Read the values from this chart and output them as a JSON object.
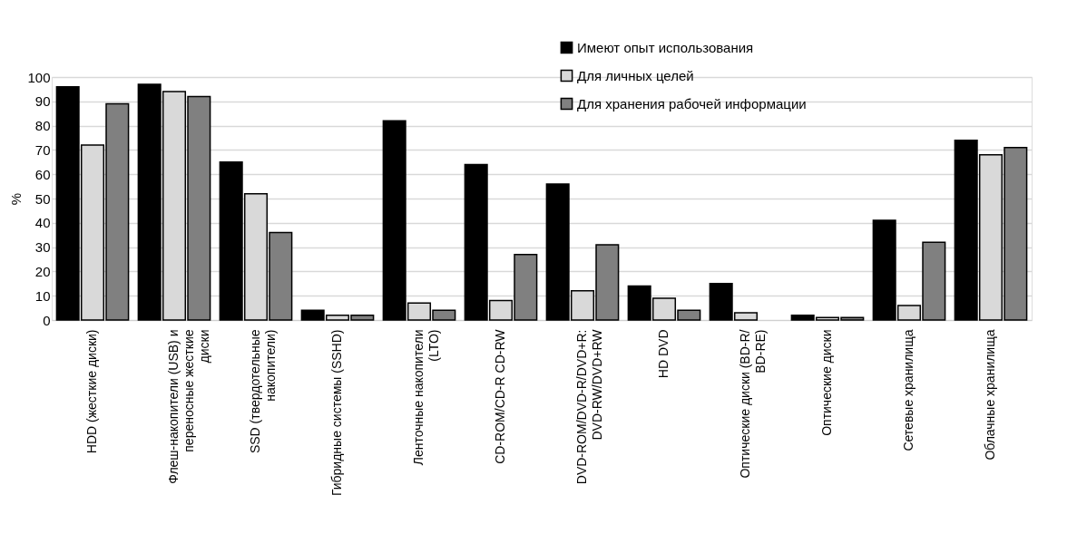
{
  "chart_data": {
    "type": "bar",
    "ylabel": "%",
    "categories": [
      "HDD (жесткие диски)",
      "Флеш-накопители (USB) и\nпереносные жесткие\nдиски",
      "SSD (твердотельные\nнакопители)",
      "Гибридные системы (SSHD)",
      "Ленточные накопители\n(LTO)",
      "CD-ROM/CD-R CD-RW",
      "DVD-ROM/DVD-R/DVD+R:\nDVD-RW/DVD+RW",
      "HD DVD",
      "Оптические диски (BD-R/\nBD-RE)",
      "Оптические диски",
      "Сетевые хранилища",
      "Облачные хранилища"
    ],
    "series": [
      {
        "name": "Имеют опыт использования",
        "color": "#000000",
        "values": [
          96,
          97,
          65,
          4,
          82,
          64,
          56,
          14,
          15,
          2,
          41,
          74
        ]
      },
      {
        "name": "Для личных целей",
        "color": "#d9d9d9",
        "values": [
          72,
          94,
          52,
          2,
          7,
          8,
          12,
          9,
          3,
          1,
          6,
          68
        ]
      },
      {
        "name": "Для хранения рабочей информации",
        "color": "#808080",
        "values": [
          89,
          92,
          36,
          2,
          4,
          27,
          31,
          4,
          null,
          1,
          32,
          71
        ]
      }
    ],
    "ylim": [
      0,
      100
    ],
    "yticks": [
      0,
      10,
      20,
      30,
      40,
      50,
      60,
      70,
      80,
      90,
      100
    ],
    "grid": "y",
    "legend": "top right"
  }
}
